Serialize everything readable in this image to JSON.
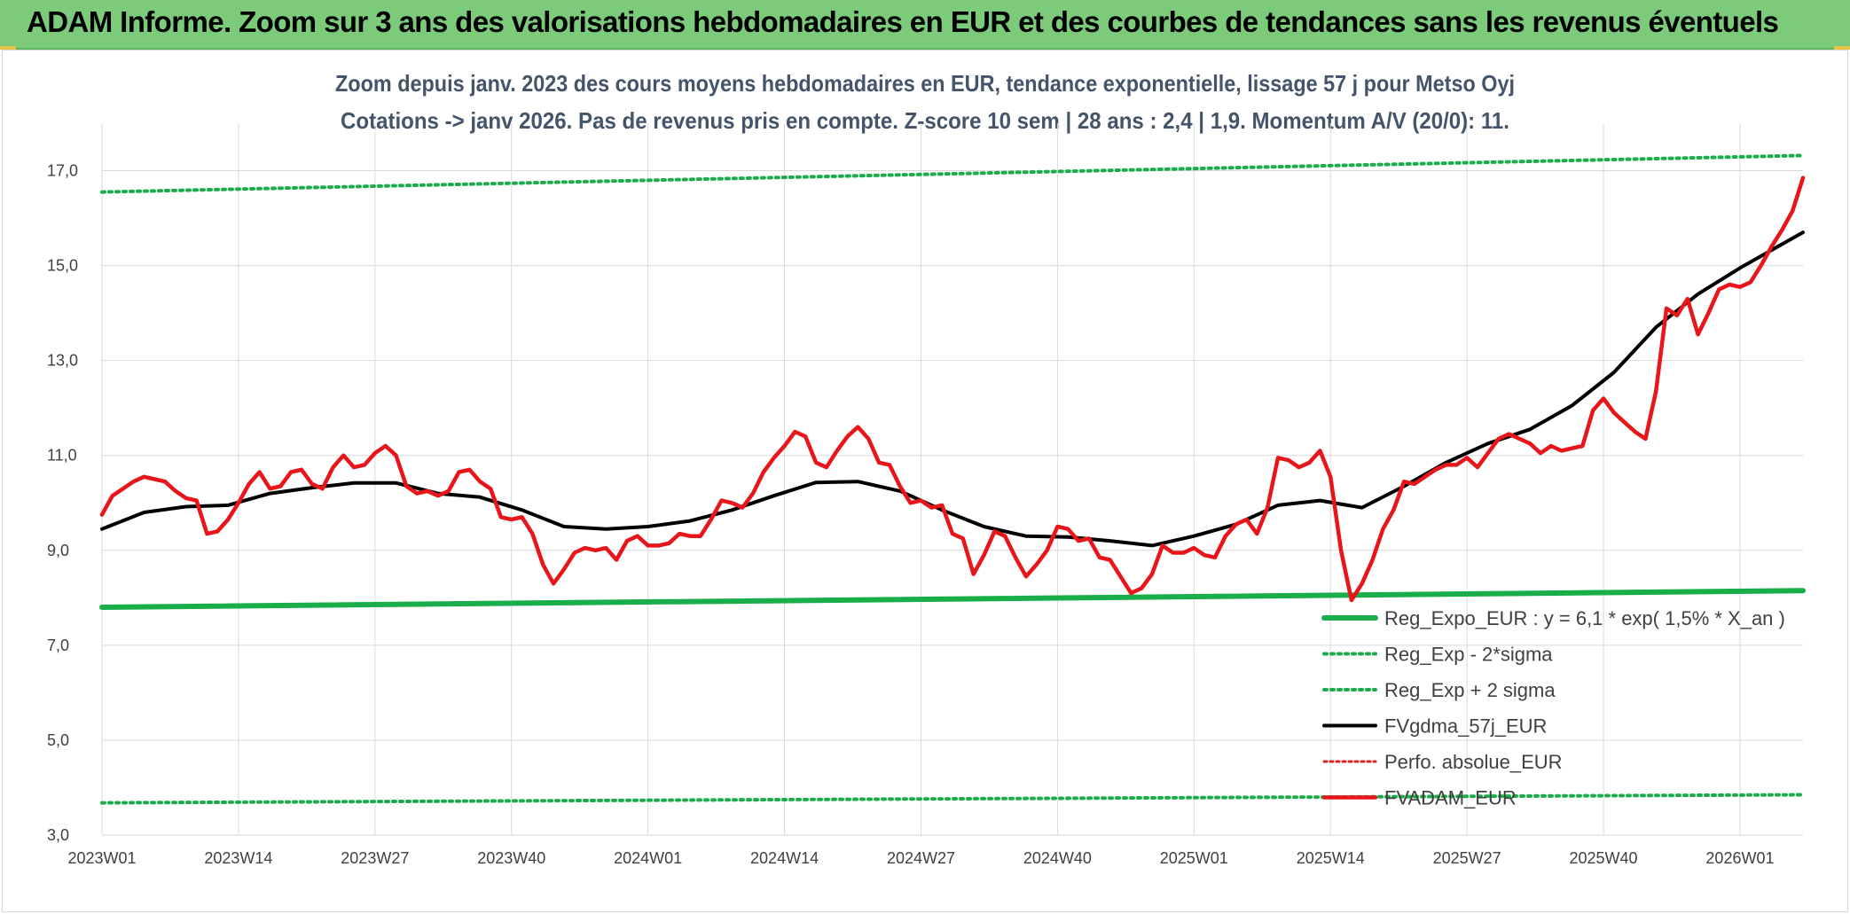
{
  "header": {
    "title": "ADAM Informe. Zoom sur 3 ans des valorisations hebdomadaires en EUR et des courbes de tendances sans les revenus éventuels"
  },
  "colors": {
    "header_bg": "#7ccb7a",
    "regression": "#1aae4a",
    "sigma_bands": "#1aae4a",
    "fvgdma": "#000000",
    "perfo": "#e02020",
    "fvadam": "#e8161b",
    "grid": "#d9d9d9",
    "title_text": "#44546a"
  },
  "chart_data": {
    "type": "line",
    "title_line1": "Zoom depuis janv. 2023 des cours moyens hebdomadaires en EUR, tendance exponentielle, lissage 57 j pour Metso Oyj",
    "title_line2": "Cotations -> janv 2026. Pas de revenus pris en compte. Z-score 10 sem | 28 ans : 2,4 | 1,9. Momentum A/V (20/0): 11.",
    "x_tick_labels": [
      "2023W01",
      "2023W14",
      "2023W27",
      "2023W40",
      "2024W01",
      "2024W14",
      "2024W27",
      "2024W40",
      "2025W01",
      "2025W14",
      "2025W27",
      "2025W40",
      "2026W01"
    ],
    "y_tick_labels": [
      "17,0",
      "15,0",
      "13,0",
      "11,0",
      "9,0",
      "7,0",
      "5,0",
      "3,0"
    ],
    "y_ticks": [
      17,
      15,
      13,
      11,
      9,
      7,
      5,
      3
    ],
    "ylim": [
      3,
      18
    ],
    "x_range_weeks": [
      0,
      162
    ],
    "legend_position": "bottom-right",
    "series": [
      {
        "name": "Reg_Expo_EUR : y = 6,1 * exp( 1,5% *  X_an )",
        "style": "solid-thick",
        "x": [
          0,
          162
        ],
        "values": [
          7.8,
          8.15
        ]
      },
      {
        "name": "Reg_Exp - 2*sigma",
        "style": "dotted",
        "x": [
          0,
          162
        ],
        "values": [
          3.68,
          3.85
        ]
      },
      {
        "name": "Reg_Exp + 2 sigma",
        "style": "dotted",
        "x": [
          0,
          162
        ],
        "values": [
          16.55,
          17.32
        ]
      },
      {
        "name": "FVgdma_57j_EUR",
        "style": "solid",
        "x": [
          0,
          4,
          8,
          12,
          16,
          20,
          24,
          28,
          32,
          36,
          40,
          44,
          48,
          52,
          56,
          60,
          64,
          68,
          72,
          76,
          80,
          84,
          88,
          92,
          96,
          100,
          104,
          108,
          112,
          116,
          120,
          124,
          128,
          132,
          136,
          140,
          144,
          148,
          152,
          156,
          160,
          162
        ],
        "values": [
          9.45,
          9.8,
          9.92,
          9.95,
          10.2,
          10.32,
          10.42,
          10.42,
          10.2,
          10.12,
          9.85,
          9.5,
          9.45,
          9.5,
          9.62,
          9.85,
          10.15,
          10.43,
          10.45,
          10.25,
          9.85,
          9.5,
          9.3,
          9.28,
          9.2,
          9.1,
          9.3,
          9.55,
          9.95,
          10.05,
          9.9,
          10.35,
          10.85,
          11.25,
          11.55,
          12.05,
          12.75,
          13.7,
          14.4,
          14.95,
          15.45,
          15.7
        ]
      },
      {
        "name": "Perfo. absolue_EUR",
        "style": "dotted-red",
        "x": [],
        "values": []
      },
      {
        "name": "FVADAM_EUR",
        "style": "solid-thick-red",
        "x": [
          0,
          1,
          2,
          3,
          4,
          5,
          6,
          7,
          8,
          9,
          10,
          11,
          12,
          13,
          14,
          15,
          16,
          17,
          18,
          19,
          20,
          21,
          22,
          23,
          24,
          25,
          26,
          27,
          28,
          29,
          30,
          31,
          32,
          33,
          34,
          35,
          36,
          37,
          38,
          39,
          40,
          41,
          42,
          43,
          44,
          45,
          46,
          47,
          48,
          49,
          50,
          51,
          52,
          53,
          54,
          55,
          56,
          57,
          58,
          59,
          60,
          61,
          62,
          63,
          64,
          65,
          66,
          67,
          68,
          69,
          70,
          71,
          72,
          73,
          74,
          75,
          76,
          77,
          78,
          79,
          80,
          81,
          82,
          83,
          84,
          85,
          86,
          87,
          88,
          89,
          90,
          91,
          92,
          93,
          94,
          95,
          96,
          97,
          98,
          99,
          100,
          101,
          102,
          103,
          104,
          105,
          106,
          107,
          108,
          109,
          110,
          111,
          112,
          113,
          114,
          115,
          116,
          117,
          118,
          119,
          120,
          121,
          122,
          123,
          124,
          125,
          126,
          127,
          128,
          129,
          130,
          131,
          132,
          133,
          134,
          135,
          136,
          137,
          138,
          139,
          140,
          141,
          142,
          143,
          144,
          145,
          146,
          147,
          148,
          149,
          150,
          151,
          152,
          153,
          154,
          155,
          156,
          157,
          158,
          159,
          160,
          161,
          162
        ],
        "values": [
          9.75,
          10.15,
          10.3,
          10.45,
          10.55,
          10.5,
          10.45,
          10.25,
          10.1,
          10.05,
          9.35,
          9.4,
          9.65,
          10.0,
          10.4,
          10.65,
          10.3,
          10.35,
          10.65,
          10.7,
          10.4,
          10.3,
          10.75,
          11.0,
          10.75,
          10.8,
          11.05,
          11.2,
          11.0,
          10.35,
          10.2,
          10.25,
          10.15,
          10.25,
          10.65,
          10.7,
          10.45,
          10.3,
          9.7,
          9.65,
          9.7,
          9.35,
          8.7,
          8.3,
          8.6,
          8.95,
          9.05,
          9.0,
          9.05,
          8.8,
          9.2,
          9.3,
          9.1,
          9.1,
          9.15,
          9.35,
          9.3,
          9.3,
          9.65,
          10.05,
          10.0,
          9.9,
          10.2,
          10.65,
          10.95,
          11.2,
          11.5,
          11.4,
          10.85,
          10.75,
          11.1,
          11.4,
          11.6,
          11.35,
          10.85,
          10.8,
          10.35,
          10.0,
          10.05,
          9.9,
          9.95,
          9.35,
          9.25,
          8.5,
          8.9,
          9.4,
          9.3,
          8.85,
          8.45,
          8.7,
          9.0,
          9.5,
          9.45,
          9.2,
          9.25,
          8.85,
          8.8,
          8.45,
          8.1,
          8.2,
          8.5,
          9.1,
          8.95,
          8.95,
          9.05,
          8.9,
          8.85,
          9.3,
          9.55,
          9.65,
          9.35,
          9.9,
          10.95,
          10.9,
          10.75,
          10.85,
          11.1,
          10.55,
          9.0,
          7.95,
          8.3,
          8.8,
          9.45,
          9.85,
          10.45,
          10.4,
          10.55,
          10.7,
          10.8,
          10.8,
          10.95,
          10.75,
          11.05,
          11.35,
          11.45,
          11.35,
          11.25,
          11.05,
          11.2,
          11.1,
          11.15,
          11.2,
          11.95,
          12.2,
          11.9,
          11.7,
          11.5,
          11.35,
          12.35,
          14.1,
          13.95,
          14.3,
          13.55,
          14.0,
          14.5,
          14.6,
          14.55,
          14.65,
          15.0,
          15.4,
          15.75,
          16.15,
          16.85
        ]
      }
    ]
  }
}
